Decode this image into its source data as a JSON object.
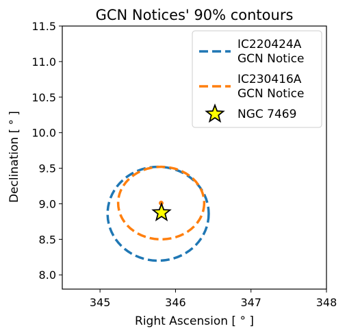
{
  "chart_data": {
    "type": "scatter",
    "title": "GCN Notices' 90% contours",
    "xlabel": "Right Ascension [$^\\circ$]",
    "xlabel_display": "Right Ascension [ ° ]",
    "ylabel_display": "Declination [ ° ]",
    "xlim": [
      344.5,
      348.0
    ],
    "ylim": [
      7.8,
      11.5
    ],
    "xticks": [
      345,
      346,
      347,
      348
    ],
    "xtick_labels": [
      "345",
      "346",
      "347",
      "348"
    ],
    "yticks": [
      8.0,
      8.5,
      9.0,
      9.5,
      10.0,
      10.5,
      11.0,
      11.5
    ],
    "ytick_labels": [
      "8.0",
      "8.5",
      "9.0",
      "9.5",
      "10.0",
      "10.5",
      "11.0",
      "11.5"
    ],
    "grid": false,
    "legend_position": "top-right",
    "series": [
      {
        "name": "IC220424A\nGCN Notice",
        "name_lines": [
          "IC220424A",
          "GCN Notice"
        ],
        "kind": "contour-ellipse",
        "color": "#1f77b4",
        "center": [
          345.77,
          8.86
        ],
        "semi_axes": [
          0.67,
          0.66
        ]
      },
      {
        "name": "IC230416A\nGCN Notice",
        "name_lines": [
          "IC230416A",
          "GCN Notice"
        ],
        "kind": "contour-ellipse",
        "color": "#ff7f0e",
        "center": [
          345.81,
          9.01
        ],
        "semi_axes": [
          0.57,
          0.51
        ],
        "center_marker": [
          345.81,
          9.01
        ]
      },
      {
        "name": "NGC 7469",
        "name_lines": [
          "NGC 7469"
        ],
        "kind": "star-marker",
        "color": "#ffff00",
        "edge_color": "#000000",
        "point": [
          345.815,
          8.874
        ]
      }
    ]
  }
}
